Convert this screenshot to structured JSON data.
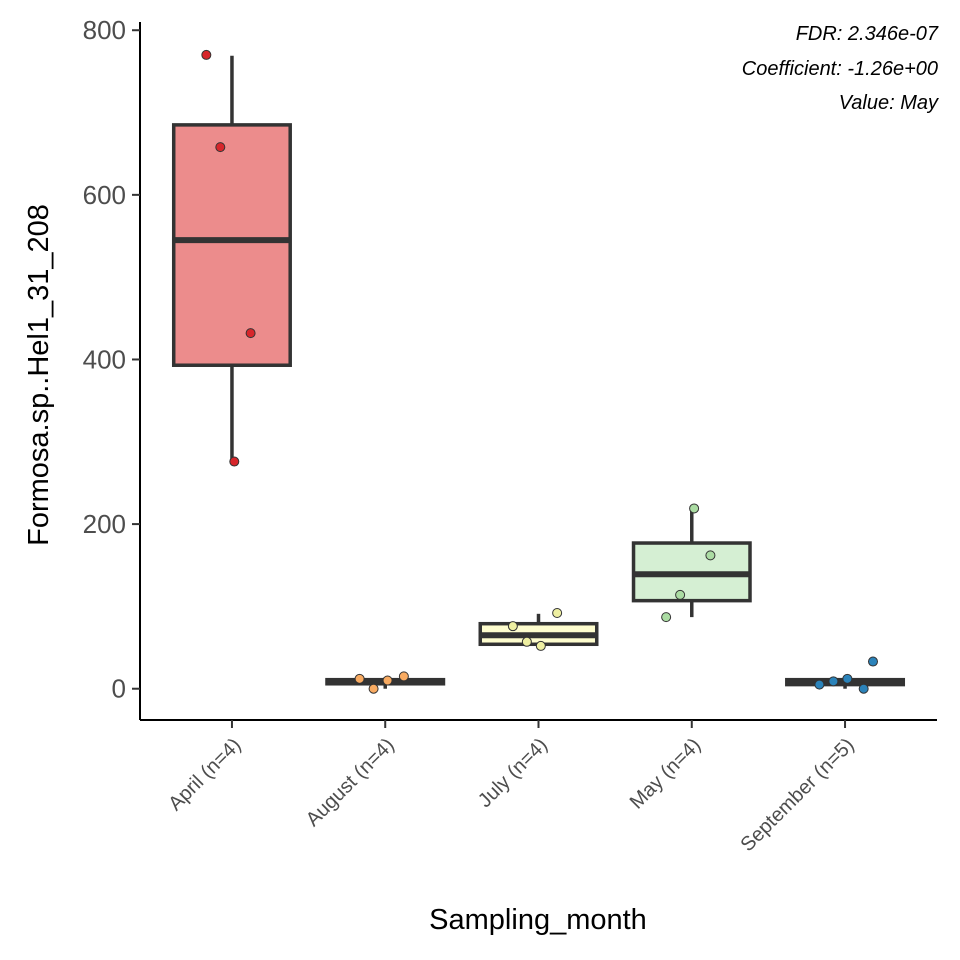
{
  "chart_data": {
    "type": "box",
    "xlabel": "Sampling_month",
    "ylabel": "Formosa.sp..Hel1_31_208",
    "ylim": [
      -38,
      810
    ],
    "yticks": [
      0,
      200,
      400,
      600,
      800
    ],
    "grid": false,
    "legend": "none",
    "annotations": [
      "FDR: 2.346e-07",
      "Coefficient: -1.26e+00",
      "Value: May"
    ],
    "groups": [
      {
        "label": "April (n=4)",
        "fill": "#ec8c8c",
        "point_color": "#d7262b",
        "q1": 393,
        "median": 545,
        "q3": 685,
        "whisker_low": 276,
        "whisker_high": 769,
        "points": [
          770,
          658,
          432,
          276
        ]
      },
      {
        "label": "August (n=4)",
        "fill": "#f8c79d",
        "point_color": "#f9ab62",
        "q1": 6,
        "median": 9,
        "q3": 11,
        "whisker_low": 0,
        "whisker_high": 14,
        "points": [
          12,
          0,
          15,
          10
        ]
      },
      {
        "label": "July (n=4)",
        "fill": "#fefdce",
        "point_color": "#eeefa1",
        "q1": 54,
        "median": 65,
        "q3": 79,
        "whisker_low": 54,
        "whisker_high": 91,
        "points": [
          76,
          57,
          92,
          52
        ]
      },
      {
        "label": "May (n=4)",
        "fill": "#d5efd3",
        "point_color": "#abdca3",
        "q1": 107,
        "median": 139,
        "q3": 177,
        "whisker_low": 87,
        "whisker_high": 218,
        "points": [
          87,
          114,
          162,
          219
        ]
      },
      {
        "label": "September (n=5)",
        "fill": "#a5c7e4",
        "point_color": "#2b83ba",
        "q1": 5,
        "median": 8,
        "q3": 11,
        "whisker_low": 0,
        "whisker_high": 13,
        "points": [
          5,
          9,
          0,
          12,
          33
        ]
      }
    ]
  }
}
